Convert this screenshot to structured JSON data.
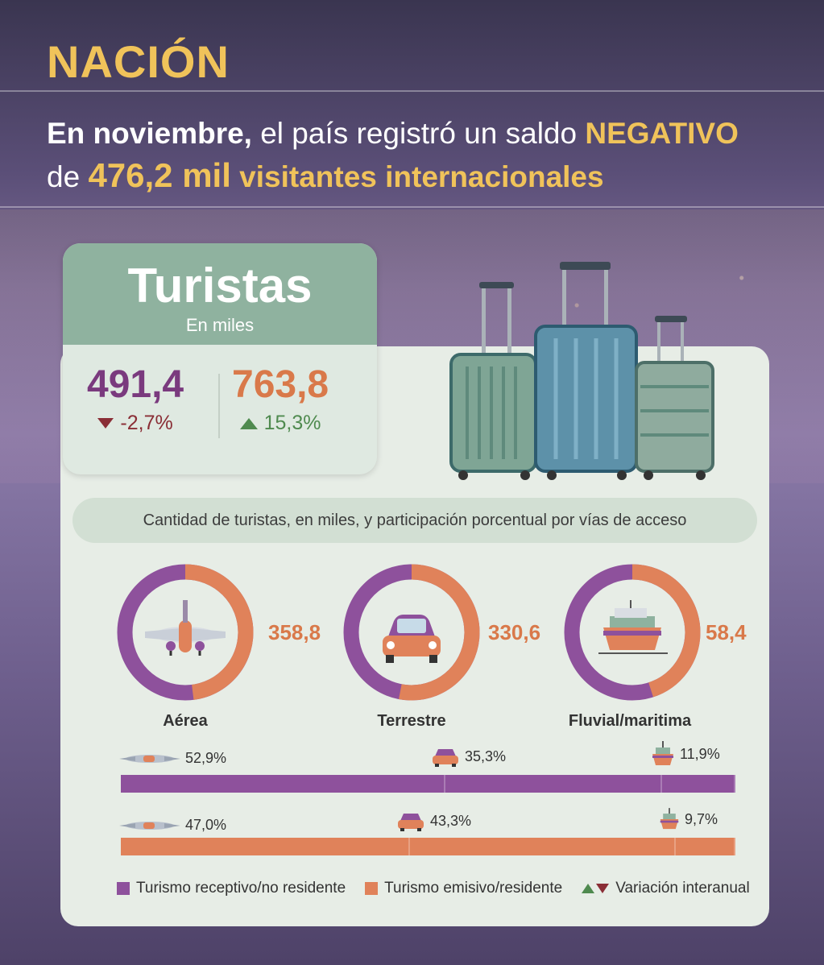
{
  "header": {
    "title": "NACIÓN",
    "line1_bold": "En noviembre,",
    "line1_rest": " el país registró un saldo ",
    "line1_accent": "NEGATIVO",
    "line2_pre": "de ",
    "line2_num": "476,2 mil",
    "line2_rest": " visitantes internacionales"
  },
  "tourists": {
    "title": "Turistas",
    "unit": "En miles",
    "receptive_value": "491,4",
    "receptive_var": "-2,7%",
    "emissive_value": "763,8",
    "emissive_var": "15,3%"
  },
  "colors": {
    "receptive": "#8e519c",
    "emissive": "#e0825a",
    "down": "#8a2e36",
    "up": "#4f8a4f"
  },
  "chart_data": {
    "type": "pie",
    "title": "Cantidad de turistas, en miles, y participación porcentual por vías de acceso",
    "categories": [
      "Aérea",
      "Terrestre",
      "Fluvial/maritima"
    ],
    "icons": [
      "airplane-icon",
      "car-icon",
      "boat-icon"
    ],
    "donut_totals": [
      "358,8",
      "330,6",
      "58,4"
    ],
    "donut_totals_numeric": [
      358.8,
      330.6,
      58.4
    ],
    "donut_receptive_share": [
      0.52,
      0.47,
      0.55
    ],
    "series": [
      {
        "name": "Turismo receptivo/no residente",
        "labels": [
          "52,9%",
          "35,3%",
          "11,9%"
        ],
        "values": [
          52.9,
          35.3,
          11.9
        ]
      },
      {
        "name": "Turismo emisivo/residente",
        "labels": [
          "47,0%",
          "43,3%",
          "9,7%"
        ],
        "values": [
          47.0,
          43.3,
          9.7
        ]
      }
    ],
    "legend_variation": "Variación interanual"
  }
}
